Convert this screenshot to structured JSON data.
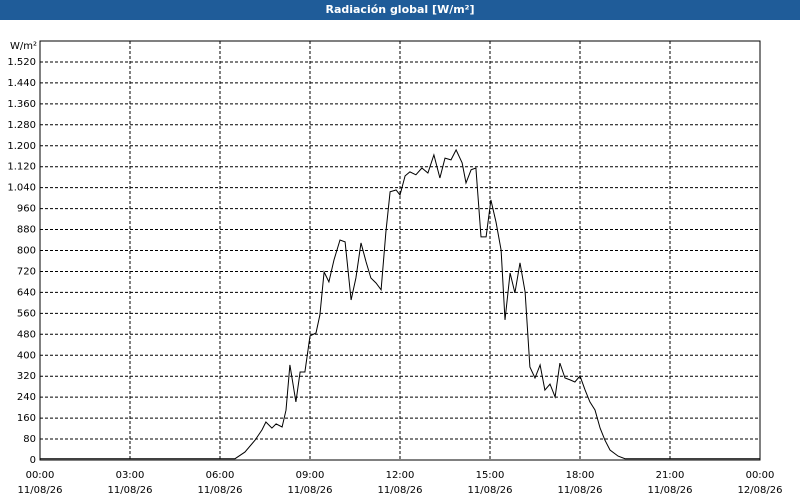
{
  "chart_data": {
    "type": "line",
    "title": "Radiación global [W/m²]",
    "y_label": "W/m²",
    "x": [
      0,
      6,
      6.5,
      6.83,
      7.17,
      7.4,
      7.53,
      7.73,
      7.87,
      8.07,
      8.2,
      8.33,
      8.53,
      8.67,
      8.83,
      9.0,
      9.2,
      9.33,
      9.47,
      9.63,
      9.8,
      10.0,
      10.17,
      10.37,
      10.53,
      10.7,
      10.87,
      11.03,
      11.2,
      11.37,
      11.53,
      11.67,
      11.87,
      12.0,
      12.17,
      12.33,
      12.53,
      12.73,
      12.93,
      13.13,
      13.33,
      13.5,
      13.7,
      13.87,
      14.07,
      14.2,
      14.37,
      14.53,
      14.7,
      14.87,
      15.03,
      15.2,
      15.37,
      15.5,
      15.67,
      15.83,
      16.0,
      16.17,
      16.33,
      16.5,
      16.67,
      16.83,
      17.0,
      17.17,
      17.33,
      17.5,
      17.67,
      17.83,
      18.0,
      18.17,
      18.33,
      18.5,
      18.67,
      18.83,
      19.0,
      19.27,
      19.5,
      24
    ],
    "series": [
      {
        "name": "Radiación global",
        "color": "#000000",
        "values": [
          5,
          5,
          5,
          30,
          76,
          115,
          145,
          122,
          138,
          126,
          190,
          363,
          222,
          336,
          336,
          474,
          485,
          554,
          718,
          680,
          764,
          840,
          833,
          611,
          695,
          829,
          756,
          695,
          676,
          650,
          871,
          1024,
          1031,
          1012,
          1085,
          1100,
          1089,
          1115,
          1096,
          1165,
          1077,
          1153,
          1146,
          1184,
          1135,
          1058,
          1108,
          1115,
          852,
          852,
          993,
          909,
          802,
          535,
          714,
          638,
          753,
          642,
          355,
          313,
          363,
          267,
          290,
          241,
          370,
          313,
          306,
          298,
          321,
          267,
          222,
          191,
          122,
          76,
          38,
          15,
          5,
          5
        ]
      }
    ],
    "xlim": [
      0,
      24
    ],
    "xticks": [
      {
        "value": 0,
        "label": "00:00"
      },
      {
        "value": 3,
        "label": "03:00"
      },
      {
        "value": 6,
        "label": "06:00"
      },
      {
        "value": 9,
        "label": "09:00"
      },
      {
        "value": 12,
        "label": "12:00"
      },
      {
        "value": 15,
        "label": "15:00"
      },
      {
        "value": 18,
        "label": "18:00"
      },
      {
        "value": 21,
        "label": "21:00"
      },
      {
        "value": 24,
        "label": "00:00"
      }
    ],
    "xtick_dates": [
      "11/08/26",
      "11/08/26",
      "11/08/26",
      "11/08/26",
      "11/08/26",
      "11/08/26",
      "11/08/26",
      "11/08/26",
      "12/08/26"
    ],
    "ylim": [
      0,
      1600
    ],
    "yticks": [
      0,
      80,
      160,
      240,
      320,
      400,
      480,
      560,
      640,
      720,
      800,
      880,
      960,
      {
        "value": 1040,
        "label": "1.040"
      },
      {
        "value": 1120,
        "label": "1.120"
      },
      {
        "value": 1200,
        "label": "1.200"
      },
      {
        "value": 1280,
        "label": "1.280"
      },
      {
        "value": 1360,
        "label": "1.360"
      },
      {
        "value": 1440,
        "label": "1.440"
      },
      {
        "value": 1520,
        "label": "1.520"
      }
    ],
    "grid": true
  }
}
